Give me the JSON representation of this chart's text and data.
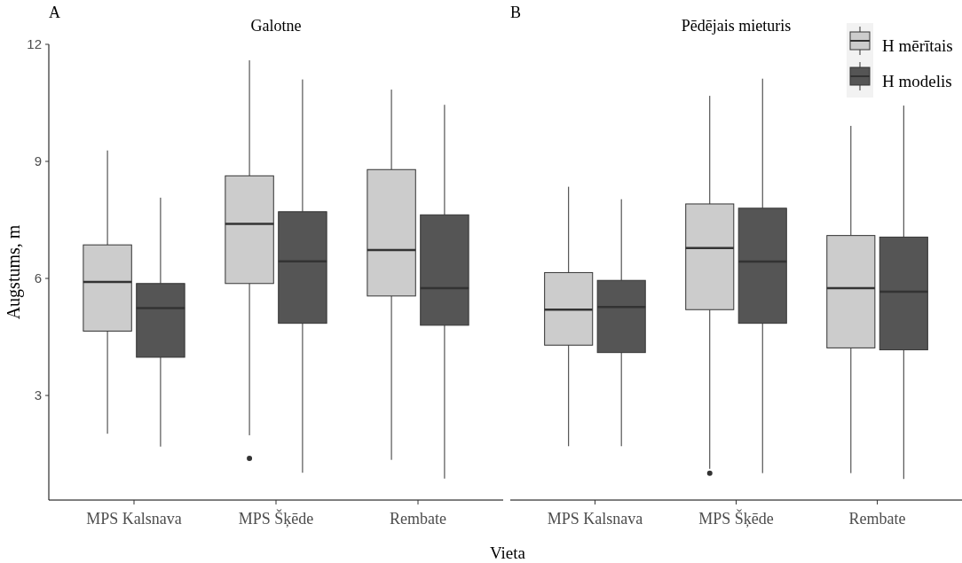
{
  "chart_data": [
    {
      "type": "box",
      "title": "Galotne",
      "annotations": [
        "A"
      ],
      "xlabel": "Vieta",
      "ylabel": "Augstums, m",
      "categories": [
        "MPS Kalsnava",
        "MPS Šķēde",
        "Rembate"
      ],
      "ylim": [
        0.32,
        12
      ],
      "yticks": [
        3,
        6,
        9,
        12
      ],
      "legend": false,
      "series": [
        {
          "color": "#cccccc",
          "boxes": [
            {
              "low": 2.02,
              "q1": 4.65,
              "median": 5.91,
              "q3": 6.86,
              "high": 9.28
            },
            {
              "low": 1.98,
              "q1": 5.87,
              "median": 7.4,
              "q3": 8.63,
              "high": 11.59,
              "outliers": [
                1.39
              ]
            },
            {
              "low": 1.35,
              "q1": 5.55,
              "median": 6.73,
              "q3": 8.79,
              "high": 10.84
            }
          ]
        },
        {
          "color": "#555555",
          "boxes": [
            {
              "low": 1.69,
              "q1": 3.98,
              "median": 5.24,
              "q3": 5.87,
              "high": 8.07
            },
            {
              "low": 1.02,
              "q1": 4.85,
              "median": 6.44,
              "q3": 7.71,
              "high": 11.1
            },
            {
              "low": 0.87,
              "q1": 4.8,
              "median": 5.75,
              "q3": 7.63,
              "high": 10.45
            }
          ]
        }
      ]
    },
    {
      "type": "box",
      "title": "Pēdējais mieturis",
      "annotations": [
        "B"
      ],
      "categories": [
        "MPS Kalsnava",
        "MPS Šķēde",
        "Rembate"
      ],
      "ylim": [
        0.32,
        12
      ],
      "tick_labels": "x",
      "legend": "top right",
      "series": [
        {
          "name": "H mērītais",
          "color": "#cccccc",
          "boxes": [
            {
              "low": 1.7,
              "q1": 4.29,
              "median": 5.2,
              "q3": 6.15,
              "high": 8.35
            },
            {
              "low": 1.12,
              "q1": 5.2,
              "median": 6.78,
              "q3": 7.91,
              "high": 10.68,
              "outliers": [
                1.01
              ]
            },
            {
              "low": 1.01,
              "q1": 4.22,
              "median": 5.75,
              "q3": 7.1,
              "high": 9.91
            }
          ]
        },
        {
          "name": "H modelis",
          "color": "#555555",
          "boxes": [
            {
              "low": 1.7,
              "q1": 4.1,
              "median": 5.27,
              "q3": 5.95,
              "high": 8.03
            },
            {
              "low": 1.01,
              "q1": 4.85,
              "median": 6.43,
              "q3": 7.8,
              "high": 11.12
            },
            {
              "low": 0.86,
              "q1": 4.17,
              "median": 5.66,
              "q3": 7.06,
              "high": 10.43
            }
          ]
        }
      ]
    }
  ]
}
